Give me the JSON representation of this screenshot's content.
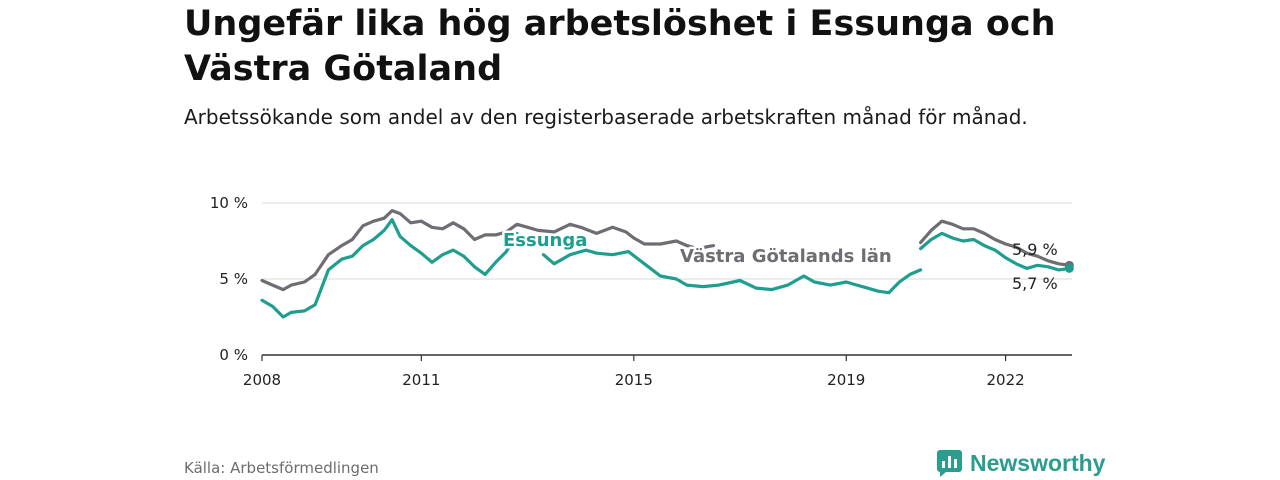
{
  "title": "Ungefär lika hög arbetslöshet i Essunga och Västra Götaland",
  "subtitle": "Arbetssökande som andel av den registerbaserade arbetskraften månad för månad.",
  "source": "Källa: Arbetsförmedlingen",
  "brand": {
    "name": "Newsworthy",
    "icon": "newsworthy-logo-icon",
    "color": "#2a9d8f"
  },
  "chart_data": {
    "type": "line",
    "title": "Ungefär lika hög arbetslöshet i Essunga och Västra Götaland",
    "xlabel": "",
    "ylabel": "",
    "xlim": [
      2008,
      2023.25
    ],
    "ylim": [
      0,
      10
    ],
    "grid": true,
    "y_ticks": [
      0,
      5,
      10
    ],
    "y_tick_labels": [
      "0 %",
      "5 %",
      "10 %"
    ],
    "x_ticks": [
      2008,
      2011,
      2015,
      2019,
      2022
    ],
    "x_tick_labels": [
      "2008",
      "2011",
      "2015",
      "2019",
      "2022"
    ],
    "series": [
      {
        "name": "Västra Götalands län",
        "color": "#6d6d73",
        "end_label": "5,9 %",
        "points": [
          [
            2008.0,
            4.9
          ],
          [
            2008.2,
            4.6
          ],
          [
            2008.4,
            4.3
          ],
          [
            2008.55,
            4.6
          ],
          [
            2008.8,
            4.8
          ],
          [
            2009.0,
            5.3
          ],
          [
            2009.25,
            6.6
          ],
          [
            2009.5,
            7.2
          ],
          [
            2009.7,
            7.6
          ],
          [
            2009.9,
            8.5
          ],
          [
            2010.1,
            8.8
          ],
          [
            2010.3,
            9.0
          ],
          [
            2010.45,
            9.5
          ],
          [
            2010.6,
            9.3
          ],
          [
            2010.8,
            8.7
          ],
          [
            2011.0,
            8.8
          ],
          [
            2011.2,
            8.4
          ],
          [
            2011.4,
            8.3
          ],
          [
            2011.6,
            8.7
          ],
          [
            2011.8,
            8.3
          ],
          [
            2012.0,
            7.6
          ],
          [
            2012.2,
            7.9
          ],
          [
            2012.4,
            7.9
          ],
          [
            2012.6,
            8.1
          ],
          [
            2012.8,
            8.6
          ],
          [
            2013.0,
            8.4
          ],
          [
            2013.2,
            8.2
          ],
          [
            2013.5,
            8.1
          ],
          [
            2013.8,
            8.6
          ],
          [
            2014.0,
            8.4
          ],
          [
            2014.3,
            8.0
          ],
          [
            2014.6,
            8.4
          ],
          [
            2014.85,
            8.1
          ],
          [
            2015.0,
            7.7
          ],
          [
            2015.2,
            7.3
          ],
          [
            2015.5,
            7.3
          ],
          [
            2015.8,
            7.5
          ],
          [
            2016.0,
            7.2
          ],
          [
            2016.2,
            7.0
          ],
          [
            2016.5,
            7.2
          ]
        ]
      },
      {
        "name": "Västra Götalands län (2020–2023)",
        "color": "#6d6d73",
        "points": [
          [
            2020.4,
            7.4
          ],
          [
            2020.6,
            8.2
          ],
          [
            2020.8,
            8.8
          ],
          [
            2021.0,
            8.6
          ],
          [
            2021.2,
            8.3
          ],
          [
            2021.4,
            8.3
          ],
          [
            2021.6,
            8.0
          ],
          [
            2021.8,
            7.6
          ],
          [
            2022.0,
            7.3
          ],
          [
            2022.2,
            7.1
          ],
          [
            2022.4,
            6.7
          ],
          [
            2022.6,
            6.5
          ],
          [
            2022.8,
            6.2
          ],
          [
            2023.0,
            6.0
          ],
          [
            2023.2,
            5.9
          ]
        ]
      },
      {
        "name": "Essunga",
        "color": "#1f9e8f",
        "end_label": "5,7 %",
        "points": [
          [
            2008.0,
            3.6
          ],
          [
            2008.2,
            3.2
          ],
          [
            2008.4,
            2.5
          ],
          [
            2008.55,
            2.8
          ],
          [
            2008.8,
            2.9
          ],
          [
            2009.0,
            3.3
          ],
          [
            2009.25,
            5.6
          ],
          [
            2009.5,
            6.3
          ],
          [
            2009.7,
            6.5
          ],
          [
            2009.9,
            7.2
          ],
          [
            2010.1,
            7.6
          ],
          [
            2010.3,
            8.2
          ],
          [
            2010.45,
            8.9
          ],
          [
            2010.6,
            7.8
          ],
          [
            2010.8,
            7.2
          ],
          [
            2011.0,
            6.7
          ],
          [
            2011.2,
            6.1
          ],
          [
            2011.4,
            6.6
          ],
          [
            2011.6,
            6.9
          ],
          [
            2011.8,
            6.5
          ],
          [
            2012.0,
            5.8
          ],
          [
            2012.2,
            5.3
          ],
          [
            2012.4,
            6.1
          ],
          [
            2012.6,
            6.8
          ],
          [
            2012.8,
            8.0
          ]
        ]
      },
      {
        "name": "Essunga (2013–2019)",
        "color": "#1f9e8f",
        "points": [
          [
            2013.3,
            6.6
          ],
          [
            2013.5,
            6.0
          ],
          [
            2013.8,
            6.6
          ],
          [
            2014.1,
            6.9
          ],
          [
            2014.3,
            6.7
          ],
          [
            2014.6,
            6.6
          ],
          [
            2014.9,
            6.8
          ],
          [
            2015.2,
            6.0
          ],
          [
            2015.5,
            5.2
          ],
          [
            2015.8,
            5.0
          ],
          [
            2016.0,
            4.6
          ],
          [
            2016.3,
            4.5
          ],
          [
            2016.6,
            4.6
          ],
          [
            2017.0,
            4.9
          ],
          [
            2017.3,
            4.4
          ],
          [
            2017.6,
            4.3
          ],
          [
            2017.9,
            4.6
          ],
          [
            2018.2,
            5.2
          ],
          [
            2018.4,
            4.8
          ],
          [
            2018.7,
            4.6
          ],
          [
            2019.0,
            4.8
          ],
          [
            2019.2,
            4.6
          ],
          [
            2019.4,
            4.4
          ],
          [
            2019.6,
            4.2
          ],
          [
            2019.8,
            4.1
          ],
          [
            2020.0,
            4.8
          ],
          [
            2020.2,
            5.3
          ],
          [
            2020.4,
            5.6
          ]
        ]
      },
      {
        "name": "Essunga (2020–2023)",
        "color": "#1f9e8f",
        "points": [
          [
            2020.4,
            7.0
          ],
          [
            2020.6,
            7.6
          ],
          [
            2020.8,
            8.0
          ],
          [
            2021.0,
            7.7
          ],
          [
            2021.2,
            7.5
          ],
          [
            2021.4,
            7.6
          ],
          [
            2021.6,
            7.2
          ],
          [
            2021.8,
            6.9
          ],
          [
            2022.0,
            6.4
          ],
          [
            2022.2,
            6.0
          ],
          [
            2022.4,
            5.7
          ],
          [
            2022.6,
            5.9
          ],
          [
            2022.8,
            5.8
          ],
          [
            2023.0,
            5.6
          ],
          [
            2023.2,
            5.7
          ]
        ]
      }
    ],
    "annotations": [
      {
        "text": "Essunga",
        "color": "#1f9e8f",
        "x": 2013.0,
        "y": 7.2
      },
      {
        "text": "Västra Götalands län",
        "color": "#6d6d73",
        "x": 2018.2,
        "y": 6.6
      }
    ]
  }
}
